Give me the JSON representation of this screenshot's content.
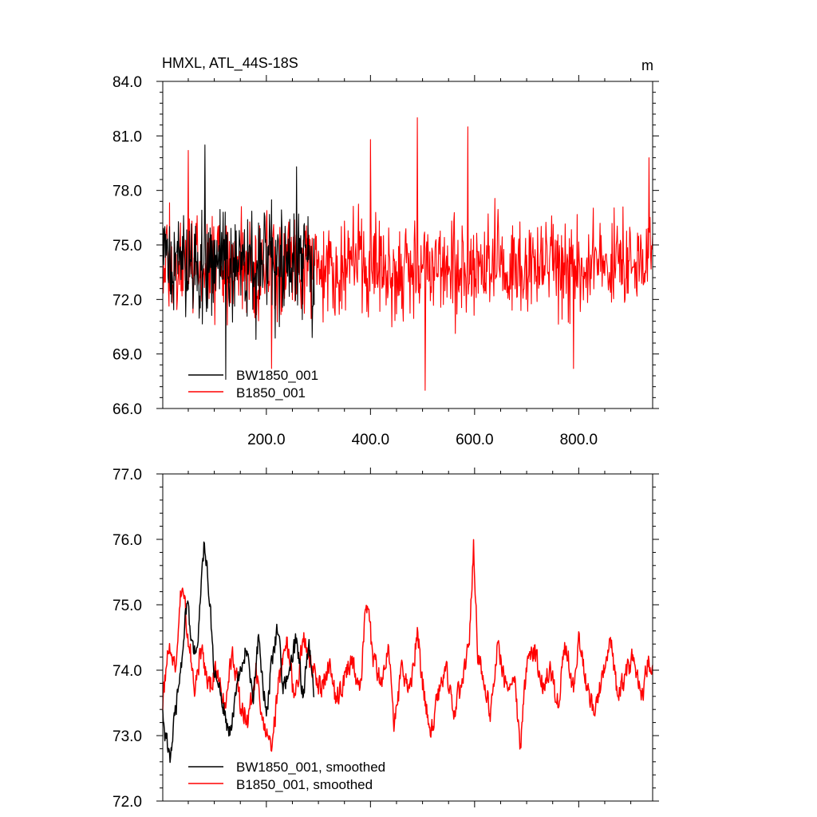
{
  "chart_data": [
    {
      "type": "line",
      "title": "HMXL, ATL_44S-18S",
      "units": "m",
      "xlim": [
        1,
        942
      ],
      "ylim": [
        66.0,
        84.0
      ],
      "xticks": [
        200,
        400,
        600,
        800
      ],
      "xtick_labels": [
        "200.0",
        "400.0",
        "600.0",
        "800.0"
      ],
      "yticks": [
        66,
        69,
        72,
        75,
        78,
        81,
        84
      ],
      "ytick_labels": [
        "66.0",
        "69.0",
        "72.0",
        "75.0",
        "78.0",
        "81.0",
        "84.0"
      ],
      "legend_position": "bottom-left",
      "series": [
        {
          "name": "BW1850_001",
          "color": "#000000",
          "x_range": [
            1,
            292
          ],
          "mean": 74.0,
          "spread": 1.8,
          "peaks": [
            [
              82,
              80.5
            ],
            [
              122,
              67.6
            ],
            [
              180,
              69.8
            ],
            [
              225,
              70.5
            ],
            [
              258,
              79.3
            ],
            [
              288,
              69.9
            ]
          ]
        },
        {
          "name": "B1850_001",
          "color": "#ff0000",
          "x_range": [
            1,
            942
          ],
          "mean": 73.9,
          "spread": 1.7,
          "peaks": [
            [
              50,
              80.2
            ],
            [
              210,
              68.2
            ],
            [
              400,
              80.8
            ],
            [
              490,
              82.0
            ],
            [
              505,
              67.0
            ],
            [
              587,
              81.5
            ],
            [
              790,
              68.2
            ],
            [
              935,
              79.8
            ]
          ]
        }
      ]
    },
    {
      "type": "line",
      "xlim": [
        1,
        942
      ],
      "ylim": [
        72.0,
        77.0
      ],
      "yticks": [
        72,
        73,
        74,
        75,
        76,
        77
      ],
      "ytick_labels": [
        "72.0",
        "73.0",
        "74.0",
        "75.0",
        "76.0",
        "77.0"
      ],
      "legend_position": "bottom-left",
      "series": [
        {
          "name": "BW1850_001, smoothed",
          "color": "#000000",
          "x_range": [
            1,
            292
          ],
          "anchors": [
            [
              1,
              73.5
            ],
            [
              5,
              73.0
            ],
            [
              15,
              72.7
            ],
            [
              25,
              73.3
            ],
            [
              35,
              74.0
            ],
            [
              48,
              75.1
            ],
            [
              60,
              74.2
            ],
            [
              70,
              74.6
            ],
            [
              80,
              75.9
            ],
            [
              90,
              75.2
            ],
            [
              100,
              74.0
            ],
            [
              115,
              73.5
            ],
            [
              130,
              73.0
            ],
            [
              145,
              73.8
            ],
            [
              160,
              74.3
            ],
            [
              175,
              73.6
            ],
            [
              185,
              74.5
            ],
            [
              200,
              73.3
            ],
            [
              210,
              74.1
            ],
            [
              222,
              74.7
            ],
            [
              232,
              73.8
            ],
            [
              245,
              74.0
            ],
            [
              258,
              74.5
            ],
            [
              270,
              73.6
            ],
            [
              282,
              74.4
            ],
            [
              292,
              73.7
            ]
          ],
          "noise": 0.22
        },
        {
          "name": "B1850_001, smoothed",
          "color": "#ff0000",
          "x_range": [
            1,
            942
          ],
          "anchors": [
            [
              1,
              73.5
            ],
            [
              12,
              74.4
            ],
            [
              25,
              74.0
            ],
            [
              38,
              75.4
            ],
            [
              50,
              74.5
            ],
            [
              62,
              73.8
            ],
            [
              75,
              74.3
            ],
            [
              90,
              73.7
            ],
            [
              105,
              74.0
            ],
            [
              120,
              73.4
            ],
            [
              135,
              74.3
            ],
            [
              150,
              73.5
            ],
            [
              165,
              73.2
            ],
            [
              180,
              74.0
            ],
            [
              195,
              73.1
            ],
            [
              210,
              72.8
            ],
            [
              225,
              73.9
            ],
            [
              240,
              74.4
            ],
            [
              255,
              73.5
            ],
            [
              270,
              74.5
            ],
            [
              290,
              74.0
            ],
            [
              305,
              73.7
            ],
            [
              320,
              74.1
            ],
            [
              335,
              73.5
            ],
            [
              350,
              73.9
            ],
            [
              365,
              74.2
            ],
            [
              380,
              73.6
            ],
            [
              392,
              75.1
            ],
            [
              405,
              74.2
            ],
            [
              420,
              73.8
            ],
            [
              435,
              74.4
            ],
            [
              445,
              73.1
            ],
            [
              460,
              74.0
            ],
            [
              475,
              73.6
            ],
            [
              490,
              74.6
            ],
            [
              500,
              73.8
            ],
            [
              515,
              73.0
            ],
            [
              530,
              73.6
            ],
            [
              545,
              74.0
            ],
            [
              560,
              73.4
            ],
            [
              575,
              73.8
            ],
            [
              590,
              74.5
            ],
            [
              598,
              75.9
            ],
            [
              606,
              74.2
            ],
            [
              620,
              73.8
            ],
            [
              630,
              73.3
            ],
            [
              645,
              74.4
            ],
            [
              660,
              73.7
            ],
            [
              675,
              74.0
            ],
            [
              688,
              72.8
            ],
            [
              700,
              74.1
            ],
            [
              715,
              74.3
            ],
            [
              730,
              73.8
            ],
            [
              745,
              74.0
            ],
            [
              760,
              73.5
            ],
            [
              775,
              74.4
            ],
            [
              790,
              73.7
            ],
            [
              800,
              74.5
            ],
            [
              815,
              73.8
            ],
            [
              830,
              73.4
            ],
            [
              845,
              73.9
            ],
            [
              860,
              74.5
            ],
            [
              875,
              73.6
            ],
            [
              890,
              73.9
            ],
            [
              905,
              74.2
            ],
            [
              920,
              73.5
            ],
            [
              932,
              74.1
            ],
            [
              942,
              74.0
            ]
          ],
          "noise": 0.24
        }
      ]
    }
  ]
}
